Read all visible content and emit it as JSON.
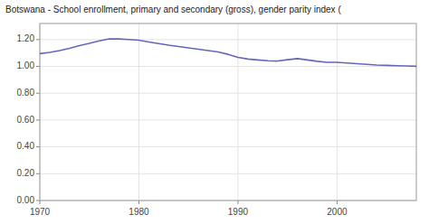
{
  "chart_data": {
    "type": "line",
    "title": "Botswana - School enrollment, primary and secondary (gross), gender parity index (",
    "color": "#6666bb",
    "x": [
      1970,
      1971,
      1972,
      1973,
      1974,
      1975,
      1976,
      1977,
      1978,
      1979,
      1980,
      1981,
      1982,
      1983,
      1984,
      1985,
      1986,
      1987,
      1988,
      1989,
      1990,
      1991,
      1992,
      1993,
      1994,
      1995,
      1996,
      1997,
      1998,
      1999,
      2000,
      2001,
      2002,
      2003,
      2004,
      2005,
      2006,
      2007,
      2008
    ],
    "values": [
      1.095,
      1.105,
      1.118,
      1.135,
      1.155,
      1.172,
      1.19,
      1.205,
      1.205,
      1.2,
      1.195,
      1.182,
      1.17,
      1.158,
      1.148,
      1.138,
      1.128,
      1.118,
      1.108,
      1.09,
      1.068,
      1.055,
      1.048,
      1.042,
      1.04,
      1.05,
      1.058,
      1.048,
      1.038,
      1.03,
      1.03,
      1.025,
      1.02,
      1.015,
      1.01,
      1.008,
      1.005,
      1.003,
      1.001
    ],
    "xlim": [
      1970,
      2008
    ],
    "ylim": [
      0.0,
      1.32
    ],
    "xticks": [
      1970,
      1980,
      1990,
      2000
    ],
    "yticks": [
      {
        "value": 0.0,
        "label": "0.00"
      },
      {
        "value": 0.2,
        "label": "0.20"
      },
      {
        "value": 0.4,
        "label": "0.40"
      },
      {
        "value": 0.6,
        "label": "0.60"
      },
      {
        "value": 0.8,
        "label": "0.80"
      },
      {
        "value": 1.0,
        "label": "1.00"
      },
      {
        "value": 1.2,
        "label": "1.20"
      }
    ],
    "grid": true
  }
}
